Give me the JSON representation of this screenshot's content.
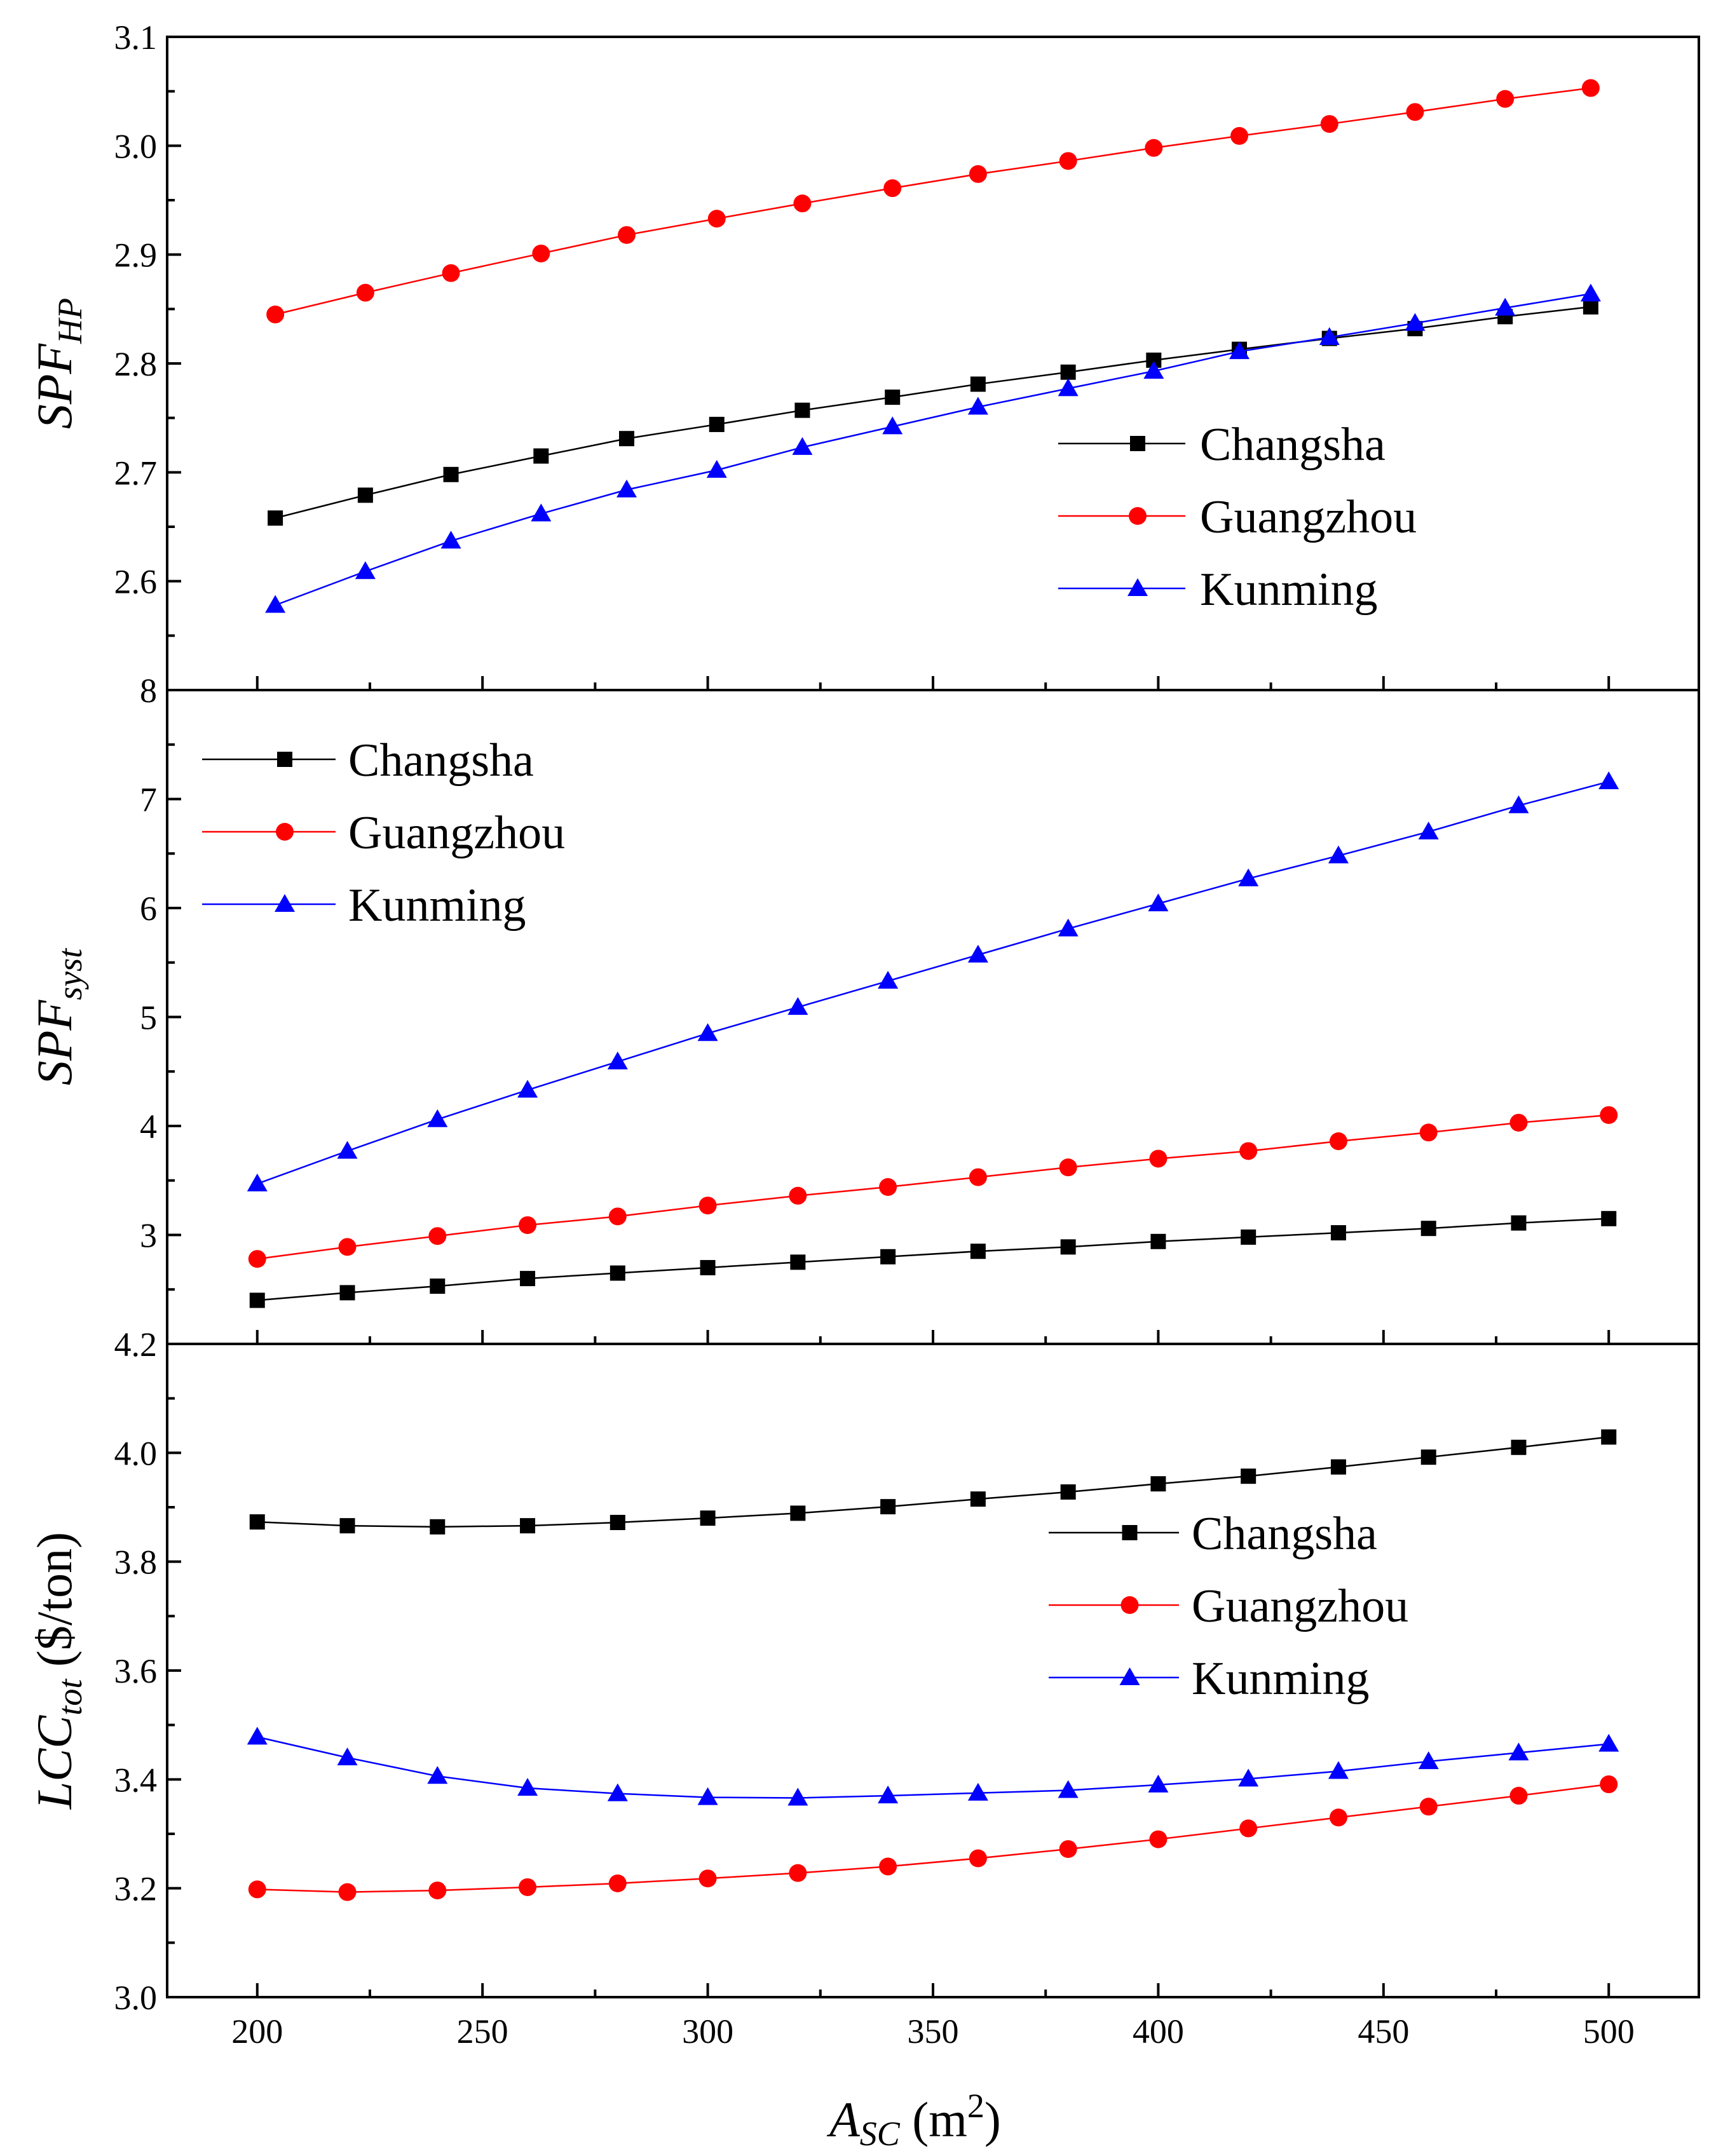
{
  "x_axis": {
    "label_main": "A",
    "label_sub": "SC",
    "label_unit_open": " (m",
    "label_unit_sup": "2",
    "label_unit_close": ")"
  },
  "colors": {
    "Changsha": "#000000",
    "Guangzhou": "#ff0000",
    "Kunming": "#0000ff"
  },
  "chart_data": [
    {
      "type": "line",
      "ylabel_main": "SPF",
      "ylabel_sub": "HP",
      "ylim": [
        2.5,
        3.1
      ],
      "yticks": [
        "2.6",
        "2.7",
        "2.8",
        "2.9",
        "3.0",
        "3.1"
      ],
      "xlim": [
        180,
        520
      ],
      "xticks": [
        200,
        250,
        300,
        350,
        400,
        450,
        500
      ],
      "legend_position": "lower-right",
      "series": [
        {
          "name": "Changsha",
          "marker": "square",
          "x": [
            204,
            224,
            243,
            263,
            282,
            302,
            321,
            341,
            360,
            380,
            399,
            418,
            438,
            457,
            477,
            496
          ],
          "y": [
            2.658,
            2.679,
            2.698,
            2.715,
            2.731,
            2.744,
            2.757,
            2.769,
            2.781,
            2.792,
            2.803,
            2.813,
            2.823,
            2.832,
            2.843,
            2.852
          ]
        },
        {
          "name": "Guangzhou",
          "marker": "circle",
          "x": [
            204,
            224,
            243,
            263,
            282,
            302,
            321,
            341,
            360,
            380,
            399,
            418,
            438,
            457,
            477,
            496
          ],
          "y": [
            2.845,
            2.865,
            2.883,
            2.901,
            2.918,
            2.933,
            2.947,
            2.961,
            2.974,
            2.986,
            2.998,
            3.009,
            3.02,
            3.031,
            3.043,
            3.053
          ]
        },
        {
          "name": "Kunming",
          "marker": "triangle",
          "x": [
            204,
            224,
            243,
            263,
            282,
            302,
            321,
            341,
            360,
            380,
            399,
            418,
            438,
            457,
            477,
            496
          ],
          "y": [
            2.578,
            2.609,
            2.637,
            2.662,
            2.684,
            2.702,
            2.723,
            2.742,
            2.76,
            2.777,
            2.793,
            2.811,
            2.824,
            2.837,
            2.851,
            2.864
          ]
        }
      ]
    },
    {
      "type": "line",
      "ylabel_main": "SPF",
      "ylabel_sub": "syst",
      "ylim": [
        2,
        8
      ],
      "yticks": [
        "3",
        "4",
        "5",
        "6",
        "7",
        "8"
      ],
      "xlim": [
        180,
        520
      ],
      "xticks": [
        200,
        250,
        300,
        350,
        400,
        450,
        500
      ],
      "legend_position": "upper-left",
      "series": [
        {
          "name": "Changsha",
          "marker": "square",
          "x": [
            200,
            220,
            240,
            260,
            280,
            300,
            320,
            340,
            360,
            380,
            400,
            420,
            440,
            460,
            480,
            500
          ],
          "y": [
            2.4,
            2.47,
            2.53,
            2.6,
            2.65,
            2.7,
            2.75,
            2.8,
            2.85,
            2.89,
            2.94,
            2.98,
            3.02,
            3.06,
            3.11,
            3.15
          ]
        },
        {
          "name": "Guangzhou",
          "marker": "circle",
          "x": [
            200,
            220,
            240,
            260,
            280,
            300,
            320,
            340,
            360,
            380,
            400,
            420,
            440,
            460,
            480,
            500
          ],
          "y": [
            2.78,
            2.89,
            2.99,
            3.09,
            3.17,
            3.27,
            3.36,
            3.44,
            3.53,
            3.62,
            3.7,
            3.77,
            3.86,
            3.94,
            4.03,
            4.1
          ]
        },
        {
          "name": "Kunming",
          "marker": "triangle",
          "x": [
            200,
            220,
            240,
            260,
            280,
            300,
            320,
            340,
            360,
            380,
            400,
            420,
            440,
            460,
            480,
            500
          ],
          "y": [
            3.47,
            3.77,
            4.06,
            4.33,
            4.59,
            4.85,
            5.09,
            5.33,
            5.57,
            5.81,
            6.04,
            6.27,
            6.48,
            6.7,
            6.94,
            7.16
          ]
        }
      ]
    },
    {
      "type": "line",
      "ylabel_main": "LCC",
      "ylabel_sub": "tot",
      "ylabel_unit": " ($/ton)",
      "ylim": [
        3.0,
        4.2
      ],
      "yticks": [
        "3.0",
        "3.2",
        "3.4",
        "3.6",
        "3.8",
        "4.0",
        "4.2"
      ],
      "xlim": [
        180,
        520
      ],
      "xticks": [
        200,
        250,
        300,
        350,
        400,
        450,
        500
      ],
      "legend_position": "right",
      "series": [
        {
          "name": "Changsha",
          "marker": "square",
          "x": [
            200,
            220,
            240,
            260,
            280,
            300,
            320,
            340,
            360,
            380,
            400,
            420,
            440,
            460,
            480,
            500
          ],
          "y": [
            3.873,
            3.866,
            3.864,
            3.866,
            3.872,
            3.88,
            3.889,
            3.901,
            3.915,
            3.928,
            3.943,
            3.957,
            3.974,
            3.992,
            4.01,
            4.029
          ]
        },
        {
          "name": "Guangzhou",
          "marker": "circle",
          "x": [
            200,
            220,
            240,
            260,
            280,
            300,
            320,
            340,
            360,
            380,
            400,
            420,
            440,
            460,
            480,
            500
          ],
          "y": [
            3.198,
            3.193,
            3.196,
            3.202,
            3.209,
            3.218,
            3.228,
            3.24,
            3.255,
            3.272,
            3.29,
            3.31,
            3.33,
            3.35,
            3.37,
            3.391
          ]
        },
        {
          "name": "Kunming",
          "marker": "triangle",
          "x": [
            200,
            220,
            240,
            260,
            280,
            300,
            320,
            340,
            360,
            380,
            400,
            420,
            440,
            460,
            480,
            500
          ],
          "y": [
            3.478,
            3.44,
            3.406,
            3.384,
            3.374,
            3.367,
            3.366,
            3.37,
            3.375,
            3.38,
            3.39,
            3.401,
            3.415,
            3.433,
            3.449,
            3.465
          ]
        }
      ]
    }
  ]
}
